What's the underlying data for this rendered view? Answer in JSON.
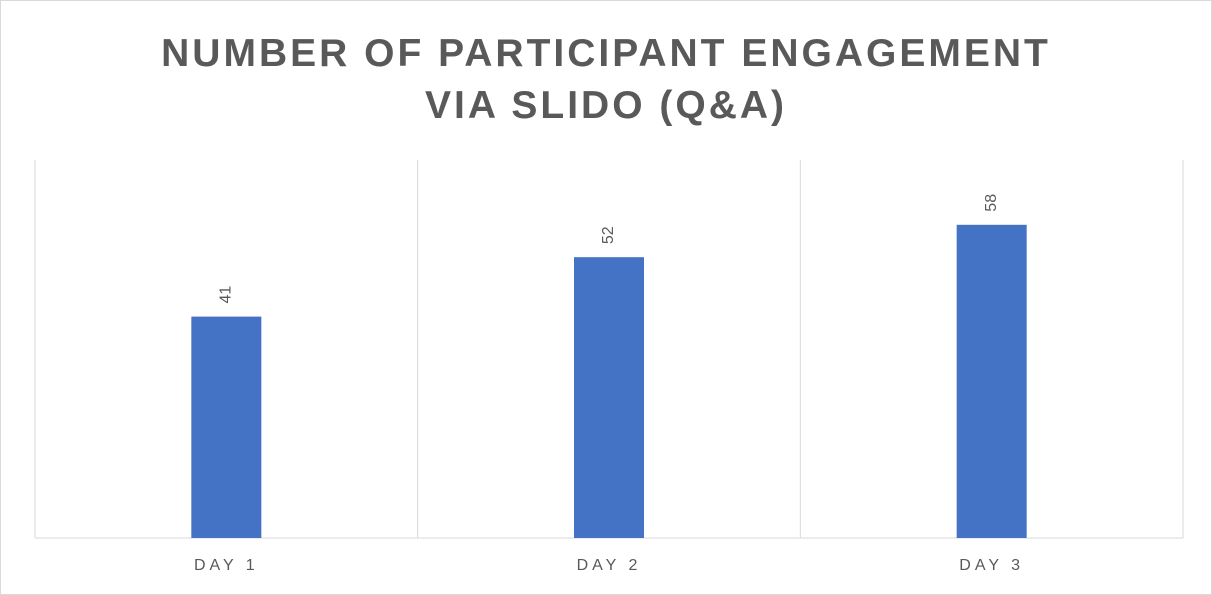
{
  "chart_data": {
    "type": "bar",
    "title": "NUMBER OF PARTICIPANT ENGAGEMENT VIA SLIDO (Q&A)",
    "categories": [
      "DAY 1",
      "DAY 2",
      "DAY 3"
    ],
    "values": [
      41,
      52,
      58
    ],
    "color": "#4472c4",
    "ylim": [
      0,
      70
    ]
  }
}
